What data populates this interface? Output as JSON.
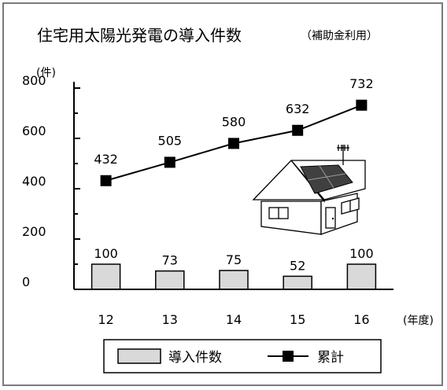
{
  "colors": {
    "bar_fill": "#d9d9d9",
    "line": "#000000",
    "frame": "#7a7a7a",
    "panel": "#404040"
  },
  "chart_data": {
    "type": "bar",
    "title": "住宅用太陽光発電の導入件数",
    "subtitle": "（補助金利用）",
    "ylabel": "(件)",
    "xlabel": "(年度)",
    "ylim": [
      0,
      800
    ],
    "yticks": [
      0,
      200,
      400,
      600,
      800
    ],
    "categories": [
      "12",
      "13",
      "14",
      "15",
      "16"
    ],
    "grid": false,
    "legend_position": "bottom",
    "series": [
      {
        "name": "導入件数",
        "type": "bar",
        "values": [
          100,
          73,
          75,
          52,
          100
        ],
        "color": "#d9d9d9"
      },
      {
        "name": "累計",
        "type": "line",
        "marker": "square",
        "values": [
          432,
          505,
          580,
          632,
          732
        ],
        "color": "#000000"
      }
    ]
  },
  "illustration": {
    "icon": "house-with-solar-panel-icon"
  }
}
